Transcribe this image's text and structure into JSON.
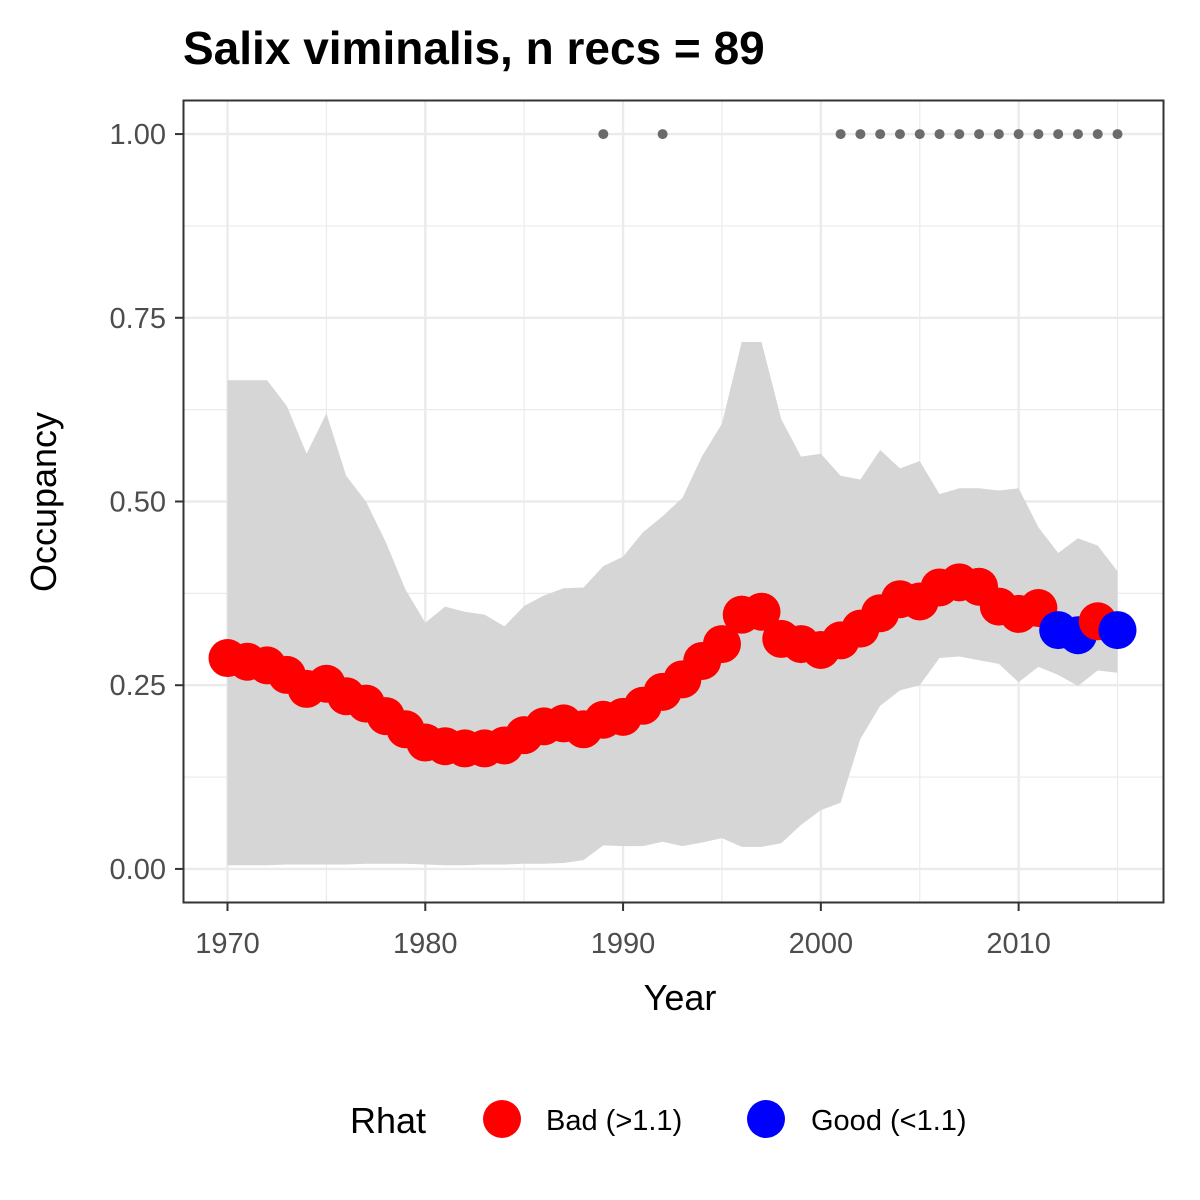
{
  "chart_data": {
    "type": "line",
    "title": "Salix viminalis, n recs = 89",
    "xlabel": "Year",
    "ylabel": "Occupancy",
    "xlim": [
      1967.8,
      1917.3
    ],
    "ylim": [
      -0.045,
      1.045
    ],
    "x_ticks": [
      1970,
      1980,
      1990,
      2000,
      2010
    ],
    "x_tick_labels": [
      "1970",
      "1980",
      "1990",
      "2000",
      "2010"
    ],
    "y_ticks": [
      0,
      0.25,
      0.5,
      0.75,
      1.0
    ],
    "y_tick_labels": [
      "0.00",
      "0.25",
      "0.50",
      "0.75",
      "1.00"
    ],
    "grid": true,
    "legend_position": "bottom",
    "legend": {
      "title": "Rhat",
      "entries": [
        {
          "label": "Bad (>1.1)",
          "color": "#ff0000"
        },
        {
          "label": "Good (<1.1)",
          "color": "#0000ff"
        }
      ]
    },
    "series": [
      {
        "x": [
          1970,
          1971,
          1972,
          1973,
          1974,
          1975,
          1976,
          1977,
          1978,
          1979,
          1980,
          1981,
          1982,
          1983,
          1984,
          1985,
          1986,
          1987,
          1988,
          1989,
          1990,
          1991,
          1992,
          1993,
          1994,
          1995,
          1996,
          1997,
          1998,
          1999,
          2000,
          2001,
          2002,
          2003,
          2004,
          2005,
          2006,
          2007,
          2008,
          2009,
          2010,
          2011,
          2012,
          2013,
          2014,
          2015
        ],
        "y": [
          0.287,
          0.282,
          0.277,
          0.264,
          0.245,
          0.252,
          0.235,
          0.225,
          0.208,
          0.19,
          0.172,
          0.167,
          0.164,
          0.164,
          0.168,
          0.182,
          0.194,
          0.198,
          0.19,
          0.203,
          0.207,
          0.222,
          0.241,
          0.258,
          0.283,
          0.306,
          0.346,
          0.35,
          0.313,
          0.306,
          0.298,
          0.311,
          0.327,
          0.348,
          0.367,
          0.364,
          0.383,
          0.39,
          0.384,
          0.357,
          0.347,
          0.355,
          0.325,
          0.318,
          0.337,
          0.325
        ],
        "rhat": [
          "Bad (>1.1)",
          "Bad (>1.1)",
          "Bad (>1.1)",
          "Bad (>1.1)",
          "Bad (>1.1)",
          "Bad (>1.1)",
          "Bad (>1.1)",
          "Bad (>1.1)",
          "Bad (>1.1)",
          "Bad (>1.1)",
          "Bad (>1.1)",
          "Bad (>1.1)",
          "Bad (>1.1)",
          "Bad (>1.1)",
          "Bad (>1.1)",
          "Bad (>1.1)",
          "Bad (>1.1)",
          "Bad (>1.1)",
          "Bad (>1.1)",
          "Bad (>1.1)",
          "Bad (>1.1)",
          "Bad (>1.1)",
          "Bad (>1.1)",
          "Bad (>1.1)",
          "Bad (>1.1)",
          "Bad (>1.1)",
          "Bad (>1.1)",
          "Bad (>1.1)",
          "Bad (>1.1)",
          "Bad (>1.1)",
          "Bad (>1.1)",
          "Bad (>1.1)",
          "Bad (>1.1)",
          "Bad (>1.1)",
          "Bad (>1.1)",
          "Bad (>1.1)",
          "Bad (>1.1)",
          "Bad (>1.1)",
          "Bad (>1.1)",
          "Bad (>1.1)",
          "Bad (>1.1)",
          "Bad (>1.1)",
          "Good (<1.1)",
          "Good (<1.1)",
          "Bad (>1.1)",
          "Good (<1.1)"
        ],
        "lower": [
          0.005,
          0.005,
          0.005,
          0.006,
          0.006,
          0.006,
          0.006,
          0.007,
          0.007,
          0.007,
          0.006,
          0.005,
          0.005,
          0.006,
          0.006,
          0.007,
          0.007,
          0.008,
          0.012,
          0.032,
          0.031,
          0.031,
          0.037,
          0.031,
          0.036,
          0.042,
          0.03,
          0.03,
          0.035,
          0.06,
          0.08,
          0.09,
          0.177,
          0.222,
          0.243,
          0.25,
          0.287,
          0.289,
          0.284,
          0.279,
          0.254,
          0.275,
          0.264,
          0.249,
          0.27,
          0.267
        ],
        "upper": [
          0.665,
          0.665,
          0.665,
          0.63,
          0.565,
          0.62,
          0.535,
          0.5,
          0.445,
          0.38,
          0.335,
          0.357,
          0.35,
          0.346,
          0.33,
          0.358,
          0.372,
          0.382,
          0.383,
          0.412,
          0.425,
          0.458,
          0.48,
          0.505,
          0.562,
          0.606,
          0.717,
          0.717,
          0.612,
          0.561,
          0.565,
          0.535,
          0.53,
          0.57,
          0.545,
          0.555,
          0.51,
          0.518,
          0.518,
          0.515,
          0.518,
          0.465,
          0.43,
          0.45,
          0.44,
          0.405
        ]
      }
    ],
    "record_years": [
      1989,
      1992,
      2001,
      2002,
      2003,
      2004,
      2005,
      2006,
      2007,
      2008,
      2009,
      2010,
      2011,
      2012,
      2013,
      2014,
      2015
    ],
    "record_y": 1.0,
    "colors": {
      "ribbon": "#d6d6d6",
      "grid": "#ebebeb",
      "panel_border": "#333333",
      "record_dots": "#6b6b6b",
      "bad": "#ff0000",
      "good": "#0000ff"
    }
  }
}
